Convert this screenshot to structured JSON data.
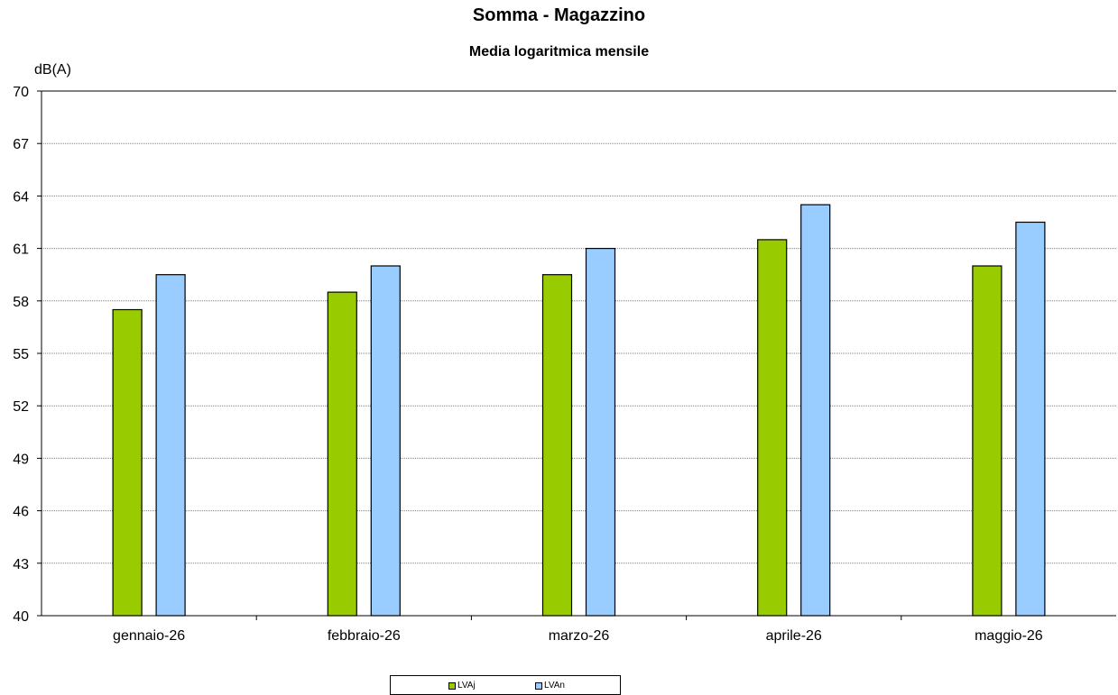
{
  "chart_data": {
    "type": "bar",
    "title": "Somma - Magazzino",
    "subtitle": "Media logaritmica mensile",
    "ylabel": "dB(A)",
    "xlabel": "",
    "categories": [
      "gennaio-26",
      "febbraio-26",
      "marzo-26",
      "aprile-26",
      "maggio-26"
    ],
    "series": [
      {
        "name": "LVAj",
        "color": "#99CC00",
        "values": [
          57.5,
          58.5,
          59.5,
          61.5,
          60.0
        ]
      },
      {
        "name": "LVAn",
        "color": "#99CCFF",
        "values": [
          59.5,
          60.0,
          61.0,
          63.5,
          62.5
        ]
      }
    ],
    "ylim": [
      40,
      70
    ],
    "yticks": [
      40,
      43,
      46,
      49,
      52,
      55,
      58,
      61,
      64,
      67,
      70
    ],
    "grid": true,
    "legend_position": "bottom"
  }
}
